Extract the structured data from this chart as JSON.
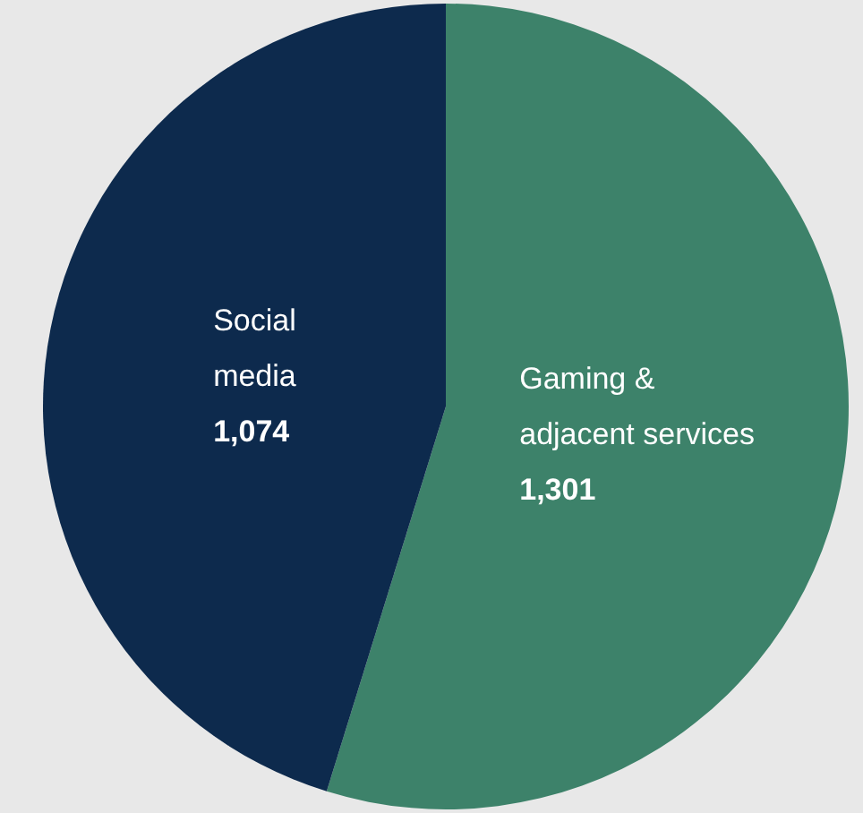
{
  "chart_data": {
    "type": "pie",
    "categories": [
      "Gaming &\nadjacent services",
      "Social\nmedia"
    ],
    "values": [
      1301,
      1074
    ],
    "colors": [
      "#3d826a",
      "#0d2a4d"
    ],
    "value_labels": [
      "1,301",
      "1,074"
    ],
    "legend": false
  }
}
